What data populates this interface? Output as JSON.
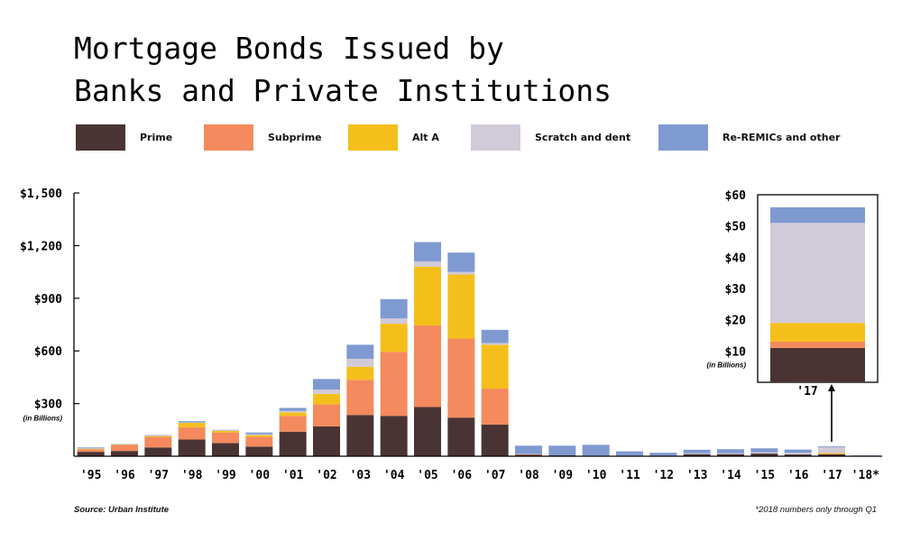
{
  "title": "Mortgage Bonds Issued by\nBanks and Private Institutions",
  "source": "Source: Urban Institute",
  "footnote": "*2018 numbers only through Q1",
  "colors": {
    "prime": "#4a3433",
    "subprime": "#f48a5d",
    "alt_a": "#f5bf1b",
    "scratch": "#d1cad8",
    "reremic": "#7f9ad1",
    "axis": "#000000"
  },
  "chart_data": [
    {
      "type": "bar",
      "stacked": true,
      "title": "",
      "xlabel": "",
      "ylabel": "(in Billions)",
      "ylim": [
        0,
        1500
      ],
      "yticks": [
        300,
        600,
        900,
        1200,
        1500
      ],
      "ytick_labels": [
        "$300",
        "$600",
        "$900",
        "$1,200",
        "$1,500"
      ],
      "grid": false,
      "legend_position": "top",
      "categories": [
        "'95",
        "'96",
        "'97",
        "'98",
        "'99",
        "'00",
        "'01",
        "'02",
        "'03",
        "'04",
        "'05",
        "'06",
        "'07",
        "'08",
        "'09",
        "'10",
        "'11",
        "'12",
        "'13",
        "'14",
        "'15",
        "'16",
        "'17",
        "'18*"
      ],
      "series": [
        {
          "name": "Prime",
          "color_key": "prime",
          "values": [
            25,
            30,
            50,
            95,
            75,
            55,
            140,
            170,
            235,
            230,
            280,
            220,
            180,
            8,
            5,
            3,
            3,
            3,
            12,
            12,
            15,
            10,
            11,
            2
          ]
        },
        {
          "name": "Subprime",
          "color_key": "subprime",
          "values": [
            15,
            35,
            60,
            70,
            60,
            55,
            90,
            125,
            200,
            365,
            465,
            450,
            205,
            3,
            0,
            0,
            0,
            0,
            0,
            0,
            0,
            0,
            2,
            0
          ]
        },
        {
          "name": "Alt A",
          "color_key": "alt_a",
          "values": [
            3,
            2,
            5,
            25,
            10,
            10,
            20,
            60,
            75,
            160,
            335,
            365,
            250,
            0,
            0,
            0,
            0,
            0,
            0,
            0,
            0,
            0,
            6,
            0
          ]
        },
        {
          "name": "Scratch and dent",
          "color_key": "scratch",
          "values": [
            2,
            1,
            2,
            3,
            2,
            5,
            8,
            25,
            45,
            30,
            30,
            15,
            10,
            2,
            0,
            0,
            0,
            0,
            5,
            5,
            8,
            10,
            32,
            2
          ]
        },
        {
          "name": "Re-REMICs and other",
          "color_key": "reremic",
          "values": [
            5,
            2,
            3,
            7,
            3,
            10,
            17,
            60,
            80,
            110,
            110,
            110,
            75,
            47,
            55,
            62,
            25,
            17,
            20,
            23,
            22,
            18,
            5,
            2
          ]
        }
      ]
    },
    {
      "type": "bar",
      "stacked": true,
      "title": "",
      "xlabel": "",
      "ylabel": "(in Billions)",
      "ylim": [
        0,
        60
      ],
      "yticks": [
        10,
        20,
        30,
        40,
        50,
        60
      ],
      "ytick_labels": [
        "$10",
        "$20",
        "$30",
        "$40",
        "$50",
        "$60"
      ],
      "categories": [
        "'17"
      ],
      "series": [
        {
          "name": "Prime",
          "color_key": "prime",
          "values": [
            11
          ]
        },
        {
          "name": "Subprime",
          "color_key": "subprime",
          "values": [
            2
          ]
        },
        {
          "name": "Alt A",
          "color_key": "alt_a",
          "values": [
            6
          ]
        },
        {
          "name": "Scratch and dent",
          "color_key": "scratch",
          "values": [
            32
          ]
        },
        {
          "name": "Re-REMICs and other",
          "color_key": "reremic",
          "values": [
            5
          ]
        }
      ]
    }
  ]
}
